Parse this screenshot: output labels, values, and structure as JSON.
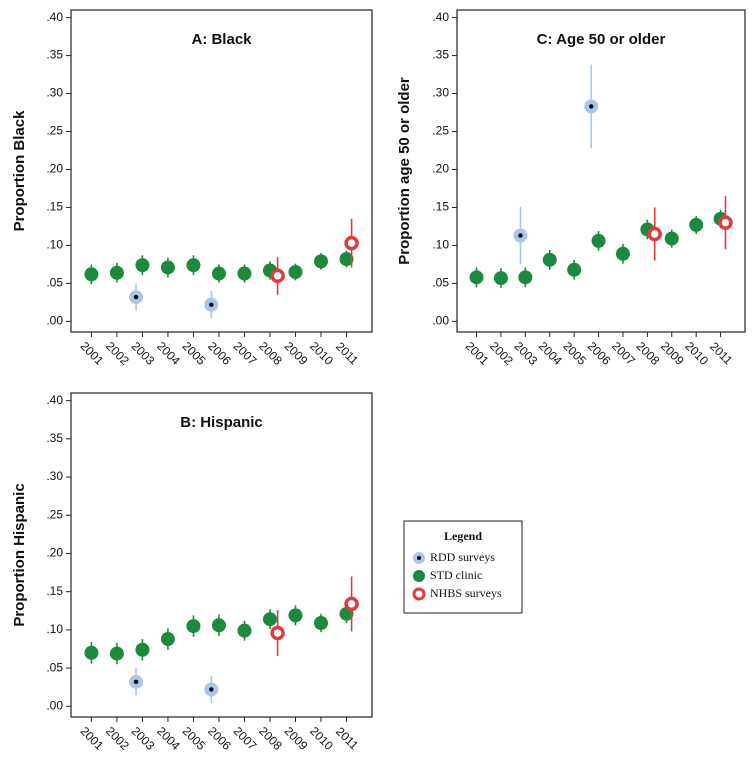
{
  "chart_data": [
    {
      "type": "scatter",
      "title": "A: Black",
      "ylabel": "Proportion Black",
      "xlim": [
        2000.2,
        2012.0
      ],
      "xticks": [
        2001,
        2002,
        2003,
        2004,
        2005,
        2006,
        2007,
        2008,
        2009,
        2010,
        2011
      ],
      "ylim": [
        -0.014,
        0.41
      ],
      "yticks": [
        {
          "value": 0,
          "label": ".00"
        },
        {
          "value": 0.05,
          "label": ".05"
        },
        {
          "value": 0.1,
          "label": ".10"
        },
        {
          "value": 0.15,
          "label": ".15"
        },
        {
          "value": 0.2,
          "label": ".20"
        },
        {
          "value": 0.25,
          "label": ".25"
        },
        {
          "value": 0.3,
          "label": ".30"
        },
        {
          "value": 0.35,
          "label": ".35"
        },
        {
          "value": 0.4,
          "label": ".40"
        }
      ],
      "series": [
        {
          "name": "RDD surveys",
          "color": "#a9c8e8",
          "marker": "dot",
          "x": [
            2002.75,
            2005.7
          ],
          "values": [
            0.032,
            0.022
          ],
          "errors": [
            0.018,
            0.018
          ]
        },
        {
          "name": "STD clinic",
          "color": "#1b8a3e",
          "marker": "filled",
          "x": [
            2001,
            2002,
            2003,
            2004,
            2005,
            2006,
            2007,
            2008,
            2009,
            2010,
            2011
          ],
          "values": [
            0.062,
            0.064,
            0.074,
            0.071,
            0.074,
            0.063,
            0.063,
            0.067,
            0.065,
            0.079,
            0.082
          ],
          "errors": [
            0.013,
            0.013,
            0.013,
            0.013,
            0.013,
            0.012,
            0.012,
            0.012,
            0.011,
            0.011,
            0.011
          ]
        },
        {
          "name": "NHBS surveys",
          "color": "#e0393e",
          "marker": "ring",
          "x": [
            2008.3,
            2011.2
          ],
          "values": [
            0.06,
            0.103
          ],
          "errors": [
            0.025,
            0.032
          ]
        }
      ]
    },
    {
      "type": "scatter",
      "title": "B: Hispanic",
      "ylabel": "Proportion Hispanic",
      "xlim": [
        2000.2,
        2012.0
      ],
      "xticks": [
        2001,
        2002,
        2003,
        2004,
        2005,
        2006,
        2007,
        2008,
        2009,
        2010,
        2011
      ],
      "ylim": [
        -0.014,
        0.41
      ],
      "yticks": [
        {
          "value": 0,
          "label": ".00"
        },
        {
          "value": 0.05,
          "label": ".05"
        },
        {
          "value": 0.1,
          "label": ".10"
        },
        {
          "value": 0.15,
          "label": ".15"
        },
        {
          "value": 0.2,
          "label": ".20"
        },
        {
          "value": 0.25,
          "label": ".25"
        },
        {
          "value": 0.3,
          "label": ".30"
        },
        {
          "value": 0.35,
          "label": ".35"
        },
        {
          "value": 0.4,
          "label": ".40"
        }
      ],
      "series": [
        {
          "name": "RDD surveys",
          "color": "#a9c8e8",
          "marker": "dot",
          "x": [
            2002.75,
            2005.7
          ],
          "values": [
            0.032,
            0.022
          ],
          "errors": [
            0.018,
            0.018
          ]
        },
        {
          "name": "STD clinic",
          "color": "#1b8a3e",
          "marker": "filled",
          "x": [
            2001,
            2002,
            2003,
            2004,
            2005,
            2006,
            2007,
            2008,
            2009,
            2010,
            2011
          ],
          "values": [
            0.07,
            0.069,
            0.074,
            0.088,
            0.105,
            0.106,
            0.099,
            0.114,
            0.119,
            0.109,
            0.121
          ],
          "errors": [
            0.014,
            0.014,
            0.014,
            0.014,
            0.014,
            0.014,
            0.013,
            0.013,
            0.013,
            0.012,
            0.012
          ]
        },
        {
          "name": "NHBS surveys",
          "color": "#e0393e",
          "marker": "ring",
          "x": [
            2008.3,
            2011.2
          ],
          "values": [
            0.096,
            0.134
          ],
          "errors": [
            0.03,
            0.036
          ]
        }
      ]
    },
    {
      "type": "scatter",
      "title": "C:  Age 50 or older",
      "ylabel": "Proportion age 50 or older",
      "xlim": [
        2000.2,
        2012.0
      ],
      "xticks": [
        2001,
        2002,
        2003,
        2004,
        2005,
        2006,
        2007,
        2008,
        2009,
        2010,
        2011
      ],
      "ylim": [
        -0.014,
        0.41
      ],
      "yticks": [
        {
          "value": 0,
          "label": ".00"
        },
        {
          "value": 0.05,
          "label": ".05"
        },
        {
          "value": 0.1,
          "label": ".10"
        },
        {
          "value": 0.15,
          "label": ".15"
        },
        {
          "value": 0.2,
          "label": ".20"
        },
        {
          "value": 0.25,
          "label": ".25"
        },
        {
          "value": 0.3,
          "label": ".30"
        },
        {
          "value": 0.35,
          "label": ".35"
        },
        {
          "value": 0.4,
          "label": ".40"
        }
      ],
      "series": [
        {
          "name": "RDD surveys",
          "color": "#a9c8e8",
          "marker": "dot",
          "x": [
            2002.8,
            2005.7
          ],
          "values": [
            0.113,
            0.283
          ],
          "errors": [
            0.038,
            0.055
          ]
        },
        {
          "name": "STD clinic",
          "color": "#1b8a3e",
          "marker": "filled",
          "x": [
            2001,
            2002,
            2003,
            2004,
            2005,
            2006,
            2007,
            2008,
            2009,
            2010,
            2011
          ],
          "values": [
            0.058,
            0.057,
            0.058,
            0.081,
            0.068,
            0.106,
            0.089,
            0.121,
            0.109,
            0.127,
            0.135
          ],
          "errors": [
            0.013,
            0.013,
            0.013,
            0.013,
            0.013,
            0.013,
            0.013,
            0.013,
            0.012,
            0.012,
            0.012
          ]
        },
        {
          "name": "NHBS surveys",
          "color": "#e0393e",
          "marker": "ring",
          "x": [
            2008.3,
            2011.2
          ],
          "values": [
            0.115,
            0.13
          ],
          "errors": [
            0.035,
            0.035
          ]
        }
      ]
    }
  ],
  "legend": {
    "title": "Legend"
  }
}
